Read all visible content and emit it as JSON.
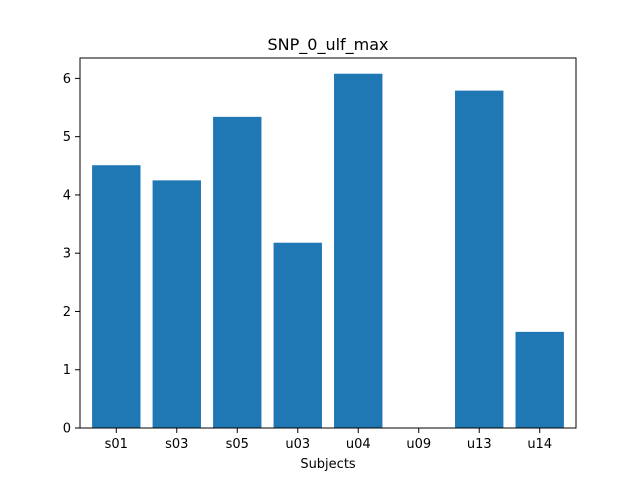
{
  "chart_data": {
    "type": "bar",
    "title": "SNP_0_ulf_max",
    "xlabel": "Subjects",
    "ylabel": "",
    "categories": [
      "s01",
      "s03",
      "s05",
      "u03",
      "u04",
      "u09",
      "u13",
      "u14"
    ],
    "values": [
      4.51,
      4.25,
      5.34,
      3.18,
      6.08,
      0,
      5.79,
      1.65
    ],
    "ylim": [
      0,
      6.35
    ],
    "yticks": [
      0,
      1,
      2,
      3,
      4,
      5,
      6
    ],
    "bar_color": "#1f77b4",
    "grid": false,
    "legend": "none"
  }
}
